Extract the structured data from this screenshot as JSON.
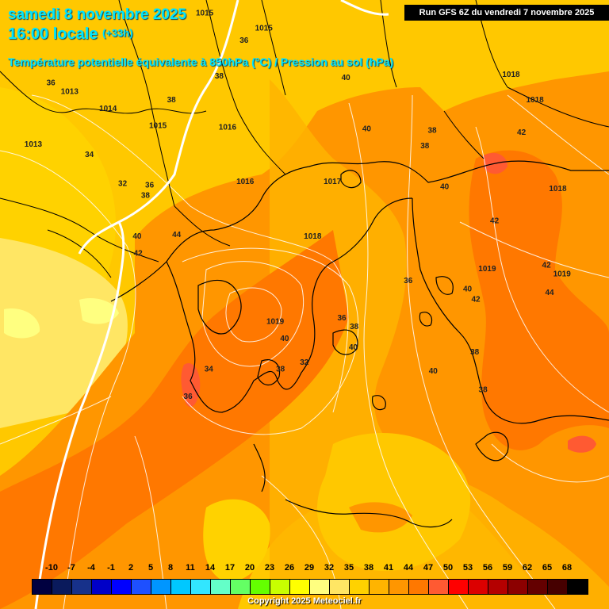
{
  "header": {
    "date_line": "samedi 8 novembre 2025",
    "time_line": "16:00 locale",
    "lead_time": "(+33h)",
    "parameter": "Température potentielle équivalente à 850hPa (°C) / Pression au sol (hPa)",
    "run_info": "Run GFS 6Z du vendredi 7 novembre 2025"
  },
  "legend": {
    "unit": "(°C)",
    "ticks": [
      "-10",
      "-7",
      "-4",
      "-1",
      "2",
      "5",
      "8",
      "11",
      "14",
      "17",
      "20",
      "23",
      "26",
      "29",
      "32",
      "35",
      "38",
      "41",
      "44",
      "47",
      "50",
      "53",
      "56",
      "59",
      "62",
      "65",
      "68"
    ],
    "colors": [
      "#000040",
      "#0a1a5c",
      "#17318a",
      "#0000c8",
      "#0000ff",
      "#1e50ff",
      "#0096ff",
      "#00c8ff",
      "#32e6ff",
      "#64ffc8",
      "#64ff64",
      "#64ff00",
      "#c8ff00",
      "#ffff00",
      "#ffff80",
      "#ffe664",
      "#ffd200",
      "#ffb400",
      "#ff9600",
      "#ff7800",
      "#ff5a32",
      "#ff0000",
      "#dc0000",
      "#b40000",
      "#8c0000",
      "#640000",
      "#460000",
      "#000000"
    ]
  },
  "pressure_labels": [
    {
      "text": "1015",
      "lon": 22.3,
      "lat": 48.6
    },
    {
      "text": "1015",
      "lon": 28.0,
      "lat": 47.7
    },
    {
      "text": "1013",
      "lon": 9.3,
      "lat": 44.0
    },
    {
      "text": "1014",
      "lon": 13.0,
      "lat": 43.0
    },
    {
      "text": "1015",
      "lon": 17.8,
      "lat": 42.0
    },
    {
      "text": "1016",
      "lon": 24.5,
      "lat": 41.9
    },
    {
      "text": "1013",
      "lon": 5.8,
      "lat": 40.9
    },
    {
      "text": "1016",
      "lon": 26.2,
      "lat": 38.7
    },
    {
      "text": "1017",
      "lon": 34.6,
      "lat": 38.7
    },
    {
      "text": "1018",
      "lon": 51.8,
      "lat": 45.0
    },
    {
      "text": "1018",
      "lon": 54.1,
      "lat": 43.5
    },
    {
      "text": "1018",
      "lon": 56.3,
      "lat": 38.3
    },
    {
      "text": "1018",
      "lon": 32.7,
      "lat": 35.5
    },
    {
      "text": "1019",
      "lon": 49.5,
      "lat": 33.6
    },
    {
      "text": "1019",
      "lon": 56.7,
      "lat": 33.3
    },
    {
      "text": "1019",
      "lon": 29.1,
      "lat": 30.5
    }
  ],
  "temperature_labels": [
    {
      "text": "36",
      "lon": 26.1,
      "lat": 47.0
    },
    {
      "text": "36",
      "lon": 7.5,
      "lat": 44.5
    },
    {
      "text": "38",
      "lon": 23.7,
      "lat": 44.9
    },
    {
      "text": "38",
      "lon": 19.1,
      "lat": 43.5
    },
    {
      "text": "40",
      "lon": 35.9,
      "lat": 44.8
    },
    {
      "text": "40",
      "lon": 37.9,
      "lat": 41.8
    },
    {
      "text": "42",
      "lon": 52.8,
      "lat": 41.6
    },
    {
      "text": "38",
      "lon": 44.2,
      "lat": 41.7
    },
    {
      "text": "38",
      "lon": 43.5,
      "lat": 40.8
    },
    {
      "text": "34",
      "lon": 11.2,
      "lat": 40.3
    },
    {
      "text": "32",
      "lon": 14.4,
      "lat": 38.6
    },
    {
      "text": "36",
      "lon": 17.0,
      "lat": 38.5
    },
    {
      "text": "38",
      "lon": 16.6,
      "lat": 37.9
    },
    {
      "text": "40",
      "lon": 45.4,
      "lat": 38.4
    },
    {
      "text": "42",
      "lon": 50.2,
      "lat": 36.4
    },
    {
      "text": "40",
      "lon": 15.8,
      "lat": 35.5
    },
    {
      "text": "44",
      "lon": 19.6,
      "lat": 35.6
    },
    {
      "text": "42",
      "lon": 15.9,
      "lat": 34.5
    },
    {
      "text": "42",
      "lon": 55.2,
      "lat": 33.8
    },
    {
      "text": "44",
      "lon": 55.5,
      "lat": 32.2
    },
    {
      "text": "36",
      "lon": 41.9,
      "lat": 32.9
    },
    {
      "text": "40",
      "lon": 47.6,
      "lat": 32.4
    },
    {
      "text": "42",
      "lon": 48.4,
      "lat": 31.8
    },
    {
      "text": "36",
      "lon": 35.5,
      "lat": 30.7
    },
    {
      "text": "38",
      "lon": 36.7,
      "lat": 30.2
    },
    {
      "text": "40",
      "lon": 30.0,
      "lat": 29.5
    },
    {
      "text": "40",
      "lon": 36.6,
      "lat": 29.0
    },
    {
      "text": "38",
      "lon": 48.3,
      "lat": 28.7
    },
    {
      "text": "32",
      "lon": 31.9,
      "lat": 28.1
    },
    {
      "text": "34",
      "lon": 22.7,
      "lat": 27.7
    },
    {
      "text": "38",
      "lon": 29.6,
      "lat": 27.7
    },
    {
      "text": "40",
      "lon": 44.3,
      "lat": 27.6
    },
    {
      "text": "38",
      "lon": 49.1,
      "lat": 26.5
    },
    {
      "text": "36",
      "lon": 20.7,
      "lat": 26.1
    }
  ],
  "copyright": "Copyright 2025 Meteociel.fr"
}
